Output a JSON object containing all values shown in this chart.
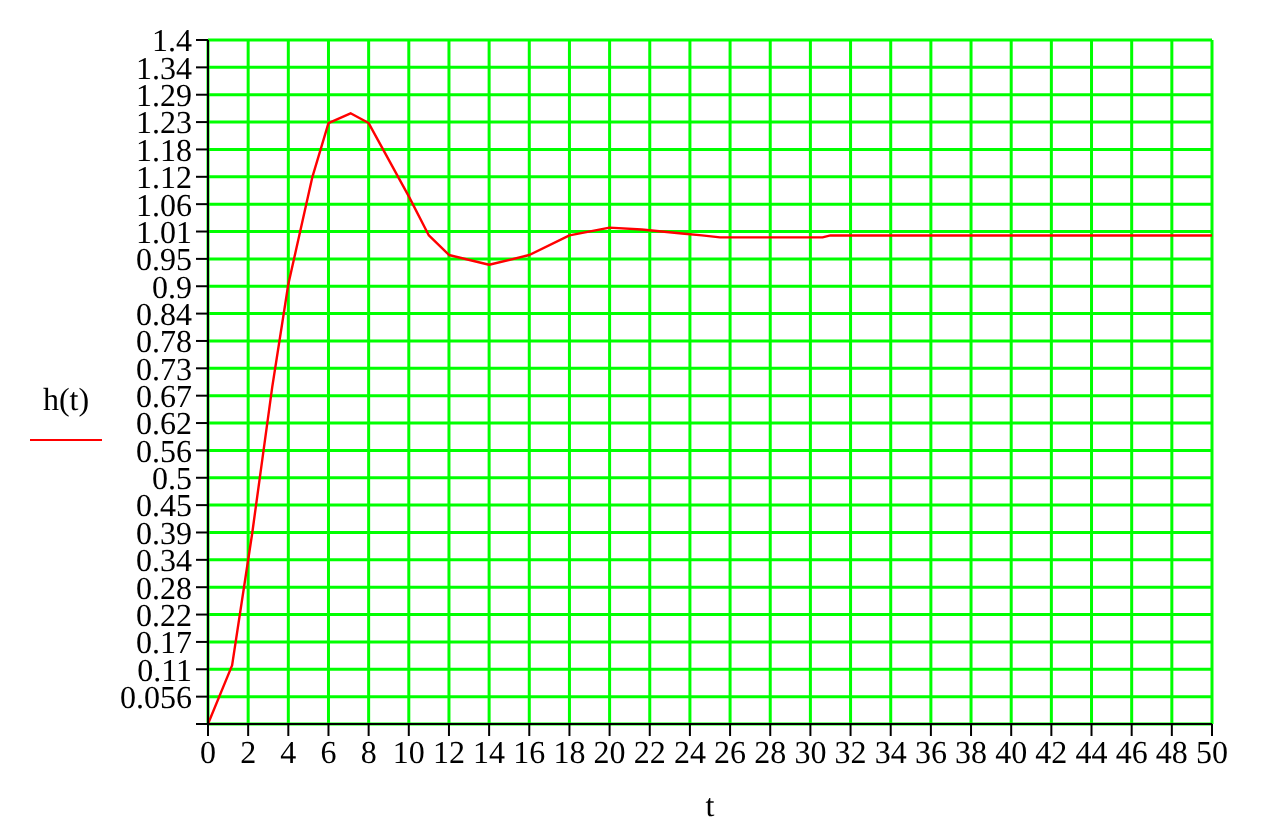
{
  "chart_data": {
    "type": "line",
    "xlabel": "t",
    "legend": "left",
    "grid": true,
    "marker": "none",
    "line_style": "solid",
    "xlim": [
      0,
      50
    ],
    "xticks": [
      0,
      2,
      4,
      6,
      8,
      10,
      12,
      14,
      16,
      18,
      20,
      22,
      24,
      26,
      28,
      30,
      32,
      34,
      36,
      38,
      40,
      42,
      44,
      46,
      48,
      50
    ],
    "ylim": [
      0,
      1.4
    ],
    "yticks": [
      {
        "value": 0,
        "label": null
      },
      {
        "value": 0.056,
        "label": "0.056"
      },
      {
        "value": 0.112,
        "label": "0.11"
      },
      {
        "value": 0.168,
        "label": "0.17"
      },
      {
        "value": 0.224,
        "label": "0.22"
      },
      {
        "value": 0.28,
        "label": "0.28"
      },
      {
        "value": 0.336,
        "label": "0.34"
      },
      {
        "value": 0.392,
        "label": "0.39"
      },
      {
        "value": 0.448,
        "label": "0.45"
      },
      {
        "value": 0.504,
        "label": "0.5"
      },
      {
        "value": 0.56,
        "label": "0.56"
      },
      {
        "value": 0.616,
        "label": "0.62"
      },
      {
        "value": 0.672,
        "label": "0.67"
      },
      {
        "value": 0.728,
        "label": "0.73"
      },
      {
        "value": 0.784,
        "label": "0.78"
      },
      {
        "value": 0.84,
        "label": "0.84"
      },
      {
        "value": 0.896,
        "label": "0.9"
      },
      {
        "value": 0.952,
        "label": "0.95"
      },
      {
        "value": 1.008,
        "label": "1.01"
      },
      {
        "value": 1.064,
        "label": "1.06"
      },
      {
        "value": 1.12,
        "label": "1.12"
      },
      {
        "value": 1.176,
        "label": "1.18"
      },
      {
        "value": 1.232,
        "label": "1.23"
      },
      {
        "value": 1.288,
        "label": "1.29"
      },
      {
        "value": 1.344,
        "label": "1.34"
      },
      {
        "value": 1.4,
        "label": "1.4"
      }
    ],
    "series": [
      {
        "name": "h(t)",
        "color": "#ff0000",
        "x": [
          0,
          1.2,
          2.2,
          3.2,
          4,
          5.2,
          6,
          7.1,
          8,
          10,
          11,
          12,
          14,
          16,
          18,
          20,
          21.6,
          22.6,
          23.6,
          24.6,
          25.5,
          30.6,
          31,
          50
        ],
        "values": [
          0,
          0.12,
          0.39,
          0.69,
          0.9,
          1.12,
          1.23,
          1.25,
          1.23,
          1.08,
          1.0,
          0.96,
          0.94,
          0.96,
          1.0,
          1.016,
          1.012,
          1.008,
          1.004,
          1.0,
          0.996,
          0.996,
          1.0,
          1.0
        ]
      }
    ]
  }
}
